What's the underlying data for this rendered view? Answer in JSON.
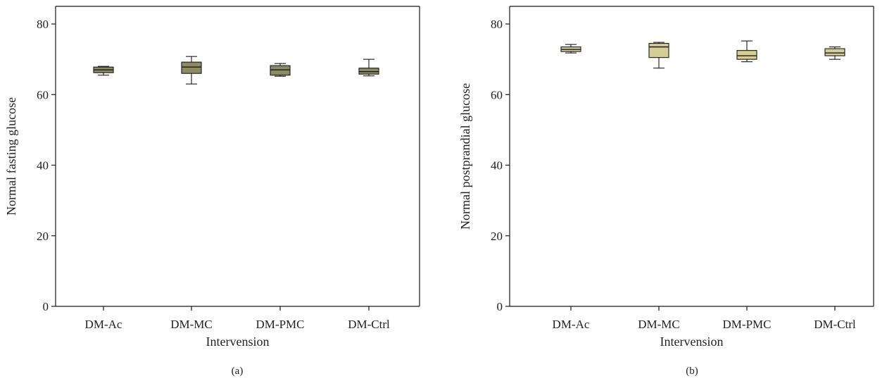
{
  "colors": {
    "panel_a_box": "#8c8a63",
    "panel_b_box": "#d4cd95",
    "line": "#1a1a1a"
  },
  "chart_data": [
    {
      "type": "box",
      "panel_label": "(a)",
      "xlabel": "Intervension",
      "ylabel": "Normal fasting glucose",
      "ylim": [
        0,
        85
      ],
      "yticks": [
        "0",
        "20",
        "40",
        "60",
        "80"
      ],
      "grid": false,
      "categories": [
        "DM-Ac",
        "DM-MC",
        "DM-PMC",
        "DM-Ctrl"
      ],
      "boxes": [
        {
          "min": 65.5,
          "q1": 66.2,
          "median": 67.0,
          "q3": 67.8,
          "max": 68.0
        },
        {
          "min": 63.0,
          "q1": 66.0,
          "median": 67.8,
          "q3": 69.2,
          "max": 70.8
        },
        {
          "min": 65.2,
          "q1": 65.5,
          "median": 67.0,
          "q3": 68.2,
          "max": 68.8
        },
        {
          "min": 65.3,
          "q1": 65.8,
          "median": 66.5,
          "q3": 67.5,
          "max": 70.0
        }
      ]
    },
    {
      "type": "box",
      "panel_label": "(b)",
      "xlabel": "Intervension",
      "ylabel": "Normal postprandial glucose",
      "ylim": [
        0,
        85
      ],
      "yticks": [
        "0",
        "20",
        "40",
        "60",
        "80"
      ],
      "grid": false,
      "categories": [
        "DM-Ac",
        "DM-MC",
        "DM-PMC",
        "DM-Ctrl"
      ],
      "boxes": [
        {
          "min": 71.8,
          "q1": 72.2,
          "median": 72.8,
          "q3": 73.5,
          "max": 74.2
        },
        {
          "min": 67.5,
          "q1": 70.5,
          "median": 73.5,
          "q3": 74.5,
          "max": 74.8
        },
        {
          "min": 69.3,
          "q1": 70.0,
          "median": 71.0,
          "q3": 72.5,
          "max": 75.2
        },
        {
          "min": 70.0,
          "q1": 71.0,
          "median": 71.8,
          "q3": 73.0,
          "max": 73.5
        }
      ]
    }
  ]
}
